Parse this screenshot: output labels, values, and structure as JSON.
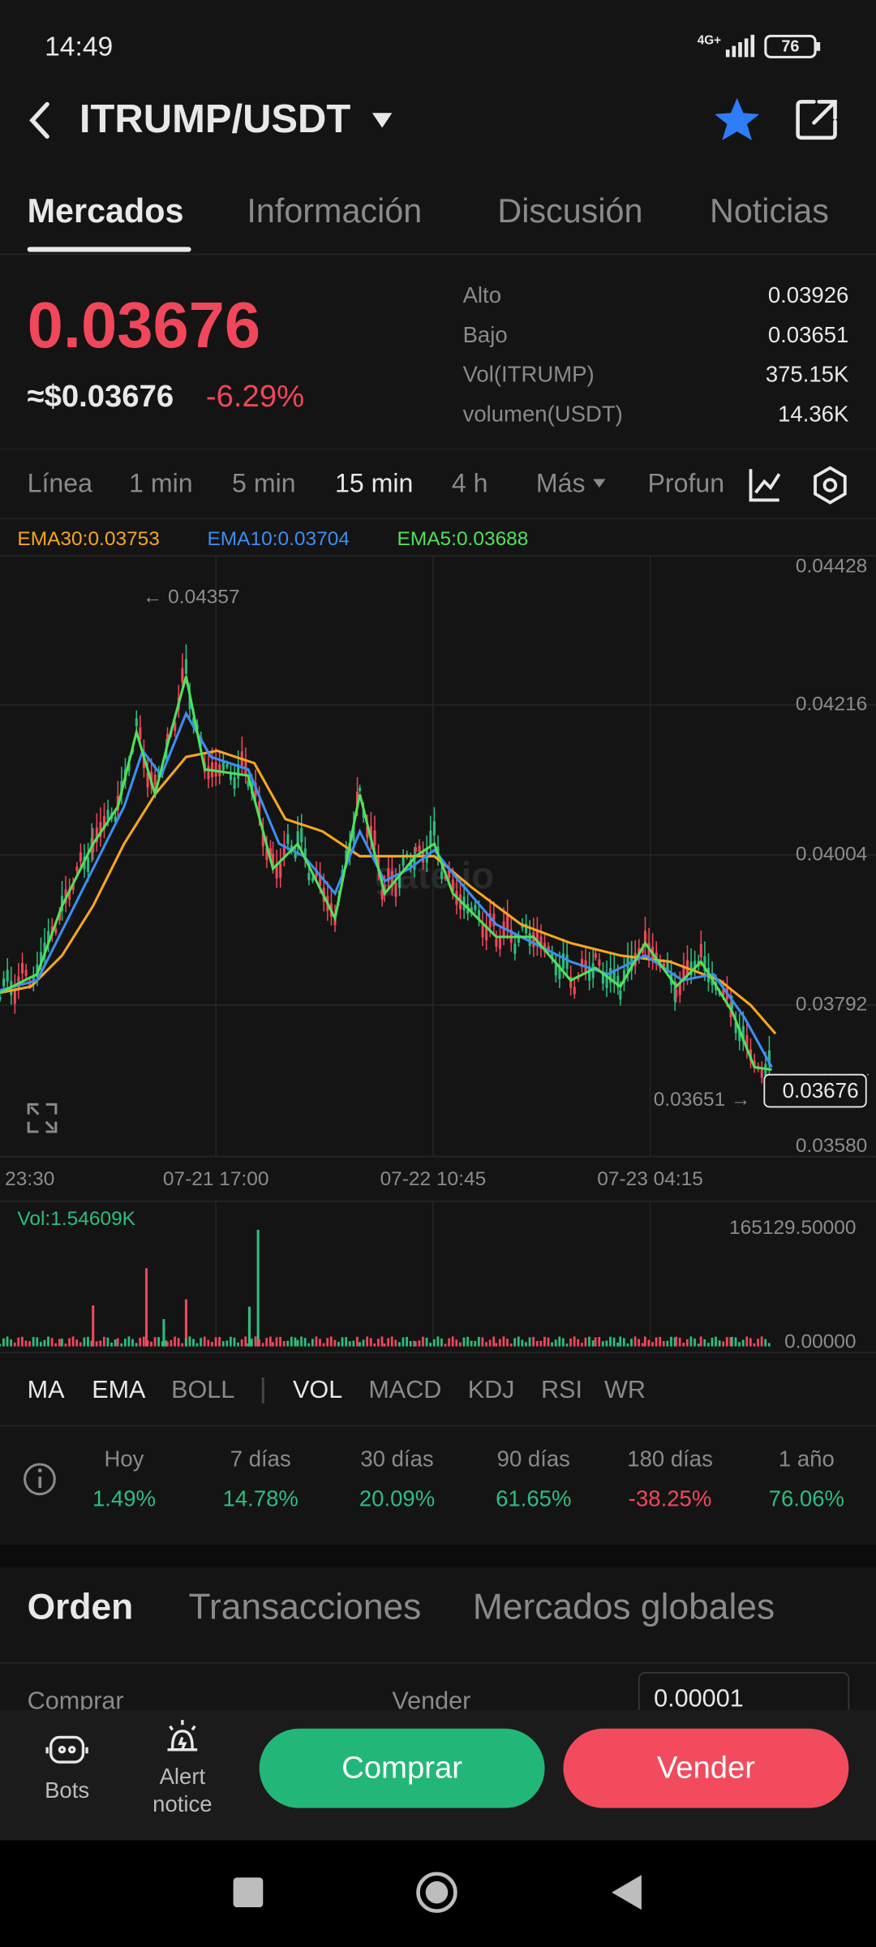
{
  "status_bar": {
    "time": "14:49",
    "network": "4G+",
    "battery": "76"
  },
  "header": {
    "pair": "ITRUMP/USDT"
  },
  "tabs": [
    "Mercados",
    "Información",
    "Discusión",
    "Noticias"
  ],
  "price": {
    "last": "0.03676",
    "usd": "≈$0.03676",
    "change": "-6.29%"
  },
  "stats": [
    {
      "label": "Alto",
      "value": "0.03926"
    },
    {
      "label": "Bajo",
      "value": "0.03651"
    },
    {
      "label": "Vol(ITRUMP)",
      "value": "375.15K"
    },
    {
      "label": "volumen(USDT)",
      "value": "14.36K"
    }
  ],
  "intervals": [
    "Línea",
    "1 min",
    "5 min",
    "15 min",
    "4 h",
    "Más",
    "Profun"
  ],
  "ema_legend": [
    "EMA30:0.03753",
    "EMA10:0.03704",
    "EMA5:0.03688"
  ],
  "price_axis": [
    "0.04428",
    "0.04216",
    "0.04004",
    "0.03792",
    "0.03580"
  ],
  "time_axis": [
    "23:30",
    "07-21 17:00",
    "07-22 10:45",
    "07-23 04:15"
  ],
  "high_marker": "← 0.04357",
  "low_marker": "0.03651 →",
  "current_price_tag": "0.03676",
  "watermark": "gate.io",
  "volume": {
    "label": "Vol:1.54609K",
    "max": "165129.50000",
    "min": "0.00000"
  },
  "indicators": [
    "MA",
    "EMA",
    "BOLL",
    "VOL",
    "MACD",
    "KDJ",
    "RSI",
    "WR"
  ],
  "performance": [
    {
      "period": "Hoy",
      "change": "1.49%"
    },
    {
      "period": "7 días",
      "change": "14.78%"
    },
    {
      "period": "30 días",
      "change": "20.09%"
    },
    {
      "period": "90 días",
      "change": "61.65%"
    },
    {
      "period": "180 días",
      "change": "-38.25%"
    },
    {
      "period": "1 año",
      "change": "76.06%"
    }
  ],
  "order_tabs": [
    "Orden",
    "Transacciones",
    "Mercados globales"
  ],
  "order_book": {
    "buy_label": "Comprar",
    "sell_label": "Vender",
    "precision": "0.00001"
  },
  "bottom_bar": {
    "bots": "Bots",
    "alert": [
      "Alert",
      "notice"
    ],
    "buy": "Comprar",
    "sell": "Vender"
  }
}
